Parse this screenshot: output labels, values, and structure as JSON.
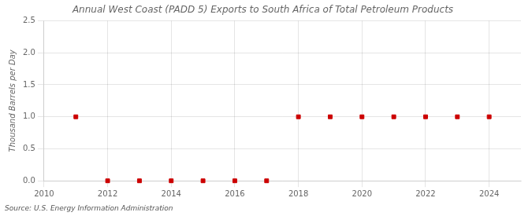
{
  "chart_data": {
    "type": "scatter",
    "title": "Annual West Coast (PADD 5) Exports to South Africa of Total Petroleum Products",
    "y_label": "Thousand Barrels per Day",
    "source": "Source: U.S. Energy Information Administration",
    "x": [
      2011,
      2012,
      2013,
      2014,
      2015,
      2016,
      2017,
      2018,
      2019,
      2020,
      2021,
      2022,
      2023,
      2024
    ],
    "values": [
      1.0,
      0.0,
      0.0,
      0.0,
      0.0,
      0.0,
      0.0,
      1.0,
      1.0,
      1.0,
      1.0,
      1.0,
      1.0,
      1.0
    ],
    "color": "#cc0000",
    "marker": "square",
    "xlim": [
      2010,
      2025
    ],
    "ylim": [
      0.0,
      2.5
    ],
    "xticks": [
      2010,
      2012,
      2014,
      2016,
      2018,
      2020,
      2022,
      2024
    ],
    "yticks": [
      {
        "value": 0,
        "label": "0.0"
      },
      0.5,
      {
        "value": 1,
        "label": "1.0"
      },
      1.5,
      {
        "value": 2,
        "label": "2.0"
      },
      2.5
    ],
    "grid": true
  }
}
